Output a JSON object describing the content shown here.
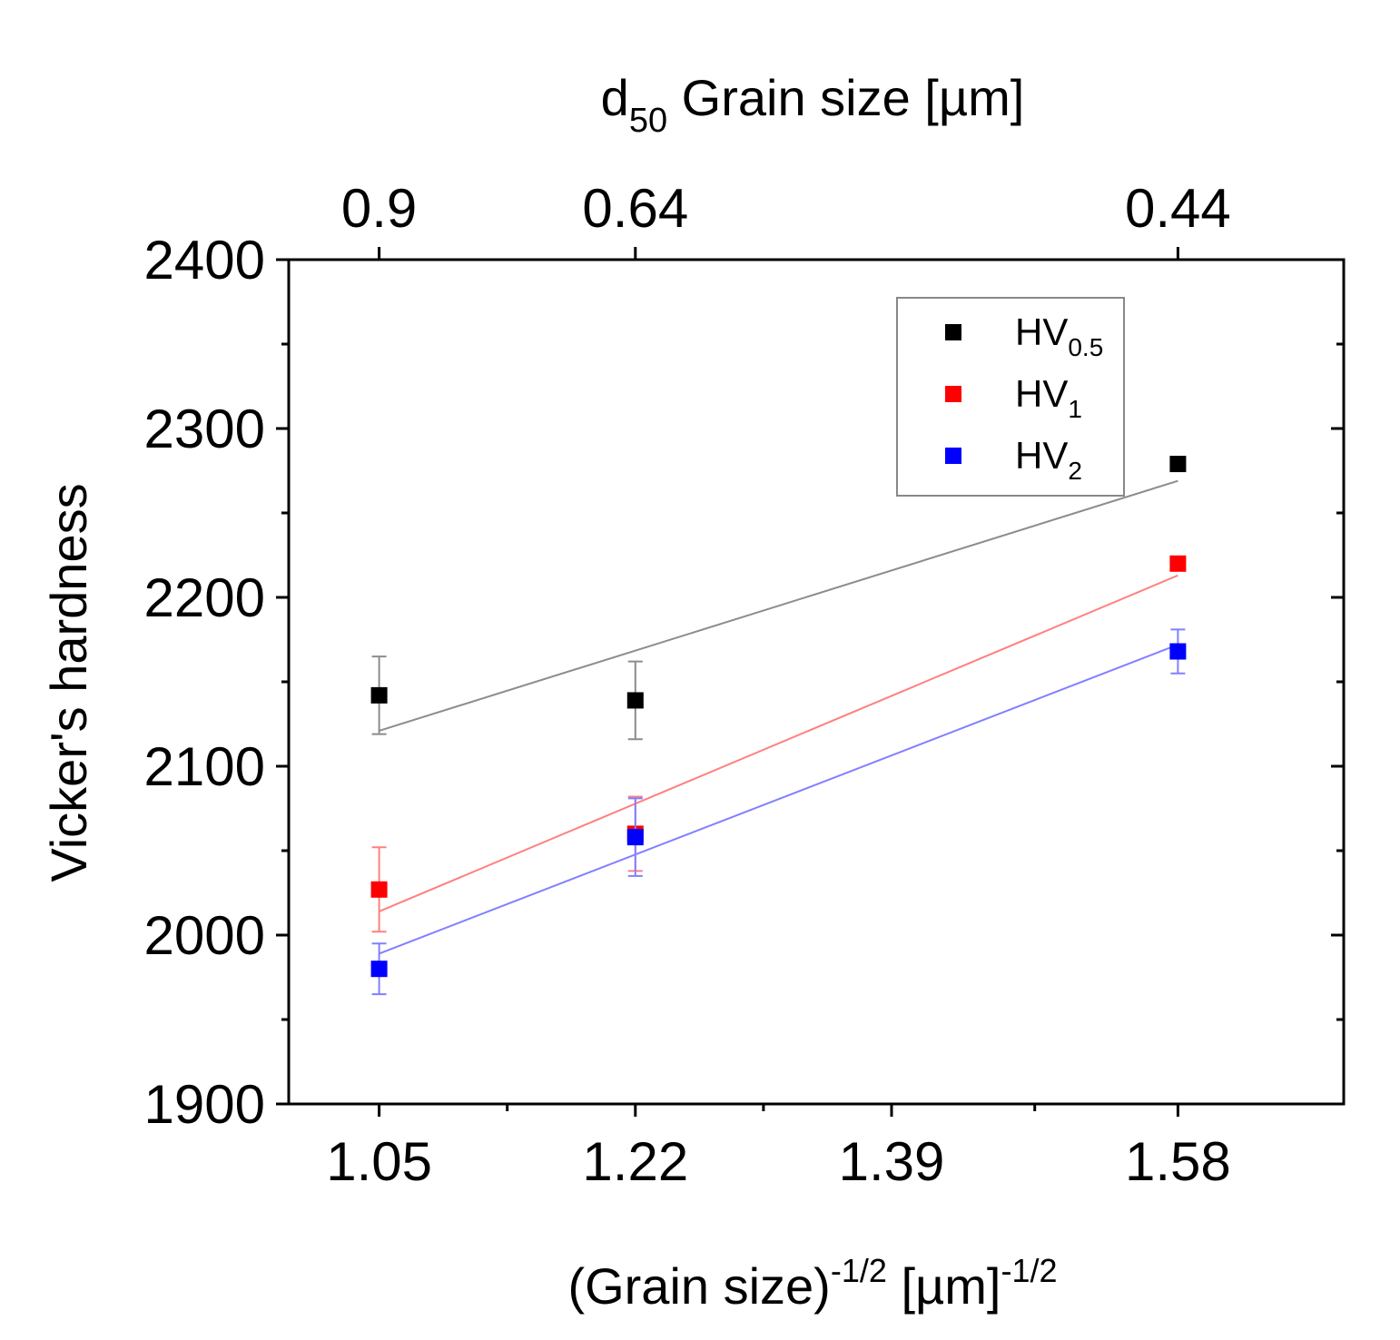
{
  "chart_data": {
    "type": "scatter",
    "title": "",
    "xlabel": {
      "main": "(Grain size)",
      "sup1": "-1/2",
      "unit": " [µm]",
      "sup2": "-1/2"
    },
    "ylabel": "Vicker's hardness",
    "top_xlabel": {
      "main": "d",
      "sub": "50",
      "rest": " Grain size [µm]"
    },
    "xlim": [
      0.99,
      1.69
    ],
    "ylim": [
      1900,
      2400
    ],
    "x_ticks": [
      1.05,
      1.22,
      1.39,
      1.58
    ],
    "x_tick_labels": [
      "1.05",
      "1.22",
      "1.39",
      "1.58"
    ],
    "y_ticks": [
      1900,
      2000,
      2100,
      2200,
      2300,
      2400
    ],
    "y_tick_labels": [
      "1900",
      "2000",
      "2100",
      "2200",
      "2300",
      "2400"
    ],
    "top_ticks": [
      1.05,
      1.22,
      1.58
    ],
    "top_tick_labels": [
      "0.9",
      "0.64",
      "0.44"
    ],
    "legend_position": "top-right",
    "series": [
      {
        "key": "hv05",
        "name": "HV",
        "sub": "0.5",
        "color": "#000000",
        "fit_color": "#8c8c8c",
        "x": [
          1.05,
          1.22,
          1.58
        ],
        "y": [
          2142,
          2139,
          2279
        ],
        "err": [
          23,
          23,
          0
        ],
        "fit": [
          [
            1.05,
            2121
          ],
          [
            1.58,
            2269
          ]
        ]
      },
      {
        "key": "hv1",
        "name": "HV",
        "sub": "1",
        "color": "#ff0000",
        "fit_color": "#ff8080",
        "x": [
          1.05,
          1.22,
          1.58
        ],
        "y": [
          2027,
          2060,
          2220
        ],
        "err": [
          25,
          22,
          0
        ],
        "fit": [
          [
            1.05,
            2014
          ],
          [
            1.58,
            2213
          ]
        ]
      },
      {
        "key": "hv2",
        "name": "HV",
        "sub": "2",
        "color": "#0000ff",
        "fit_color": "#8080ff",
        "x": [
          1.05,
          1.22,
          1.58
        ],
        "y": [
          1980,
          2058,
          2168
        ],
        "err": [
          15,
          23,
          13
        ],
        "fit": [
          [
            1.05,
            1989
          ],
          [
            1.58,
            2172
          ]
        ]
      }
    ]
  }
}
